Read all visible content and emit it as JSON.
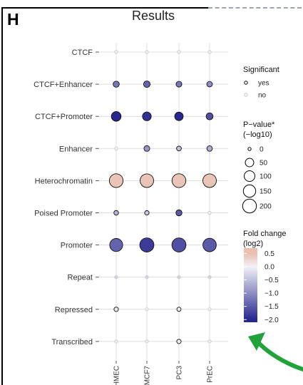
{
  "panel": {
    "letter": "H",
    "title": "Results"
  },
  "chart_data": {
    "type": "scatter",
    "title": "Results",
    "xlabel": "",
    "ylabel": "",
    "x_categories": [
      "HMEC",
      "MCF7",
      "PC3",
      "PrEC"
    ],
    "y_categories": [
      "CTCF",
      "CTCF+Enhancer",
      "CTCF+Promoter",
      "Enhancer",
      "Heterochromatin",
      "Poised Promoter",
      "Promoter",
      "Repeat",
      "Repressed",
      "Transcribed"
    ],
    "points": [
      {
        "y": "CTCF",
        "x": "HMEC",
        "fold_change_log2": 0.0,
        "neg_log10_p": 0,
        "significant": "no"
      },
      {
        "y": "CTCF",
        "x": "MCF7",
        "fold_change_log2": 0.0,
        "neg_log10_p": 0,
        "significant": "no"
      },
      {
        "y": "CTCF",
        "x": "PC3",
        "fold_change_log2": 0.0,
        "neg_log10_p": 0,
        "significant": "no"
      },
      {
        "y": "CTCF",
        "x": "PrEC",
        "fold_change_log2": 0.0,
        "neg_log10_p": 0,
        "significant": "no"
      },
      {
        "y": "CTCF+Enhancer",
        "x": "HMEC",
        "fold_change_log2": -1.2,
        "neg_log10_p": 15,
        "significant": "yes"
      },
      {
        "y": "CTCF+Enhancer",
        "x": "MCF7",
        "fold_change_log2": -1.4,
        "neg_log10_p": 20,
        "significant": "yes"
      },
      {
        "y": "CTCF+Enhancer",
        "x": "PC3",
        "fold_change_log2": -1.2,
        "neg_log10_p": 12,
        "significant": "yes"
      },
      {
        "y": "CTCF+Enhancer",
        "x": "PrEC",
        "fold_change_log2": -1.0,
        "neg_log10_p": 10,
        "significant": "yes"
      },
      {
        "y": "CTCF+Promoter",
        "x": "HMEC",
        "fold_change_log2": -2.0,
        "neg_log10_p": 75,
        "significant": "yes"
      },
      {
        "y": "CTCF+Promoter",
        "x": "MCF7",
        "fold_change_log2": -1.9,
        "neg_log10_p": 55,
        "significant": "yes"
      },
      {
        "y": "CTCF+Promoter",
        "x": "PC3",
        "fold_change_log2": -2.0,
        "neg_log10_p": 50,
        "significant": "yes"
      },
      {
        "y": "CTCF+Promoter",
        "x": "PrEC",
        "fold_change_log2": -1.6,
        "neg_log10_p": 25,
        "significant": "yes"
      },
      {
        "y": "Enhancer",
        "x": "HMEC",
        "fold_change_log2": 0.0,
        "neg_log10_p": 0,
        "significant": "no"
      },
      {
        "y": "Enhancer",
        "x": "MCF7",
        "fold_change_log2": -0.9,
        "neg_log10_p": 12,
        "significant": "yes"
      },
      {
        "y": "Enhancer",
        "x": "PC3",
        "fold_change_log2": -0.5,
        "neg_log10_p": 5,
        "significant": "yes"
      },
      {
        "y": "Enhancer",
        "x": "PrEC",
        "fold_change_log2": -0.7,
        "neg_log10_p": 10,
        "significant": "yes"
      },
      {
        "y": "Heterochromatin",
        "x": "HMEC",
        "fold_change_log2": 0.45,
        "neg_log10_p": 195,
        "significant": "yes"
      },
      {
        "y": "Heterochromatin",
        "x": "MCF7",
        "fold_change_log2": 0.45,
        "neg_log10_p": 190,
        "significant": "yes"
      },
      {
        "y": "Heterochromatin",
        "x": "PC3",
        "fold_change_log2": 0.45,
        "neg_log10_p": 200,
        "significant": "yes"
      },
      {
        "y": "Heterochromatin",
        "x": "PrEC",
        "fold_change_log2": 0.45,
        "neg_log10_p": 190,
        "significant": "yes"
      },
      {
        "y": "Poised Promoter",
        "x": "HMEC",
        "fold_change_log2": -0.6,
        "neg_log10_p": 4,
        "significant": "yes"
      },
      {
        "y": "Poised Promoter",
        "x": "MCF7",
        "fold_change_log2": -0.4,
        "neg_log10_p": 3,
        "significant": "yes"
      },
      {
        "y": "Poised Promoter",
        "x": "PC3",
        "fold_change_log2": -1.5,
        "neg_log10_p": 15,
        "significant": "yes"
      },
      {
        "y": "Poised Promoter",
        "x": "PrEC",
        "fold_change_log2": 0.0,
        "neg_log10_p": 0,
        "significant": "no"
      },
      {
        "y": "Promoter",
        "x": "HMEC",
        "fold_change_log2": -1.4,
        "neg_log10_p": 170,
        "significant": "yes"
      },
      {
        "y": "Promoter",
        "x": "MCF7",
        "fold_change_log2": -1.8,
        "neg_log10_p": 210,
        "significant": "yes"
      },
      {
        "y": "Promoter",
        "x": "PC3",
        "fold_change_log2": -1.6,
        "neg_log10_p": 210,
        "significant": "yes"
      },
      {
        "y": "Promoter",
        "x": "PrEC",
        "fold_change_log2": -1.5,
        "neg_log10_p": 185,
        "significant": "yes"
      },
      {
        "y": "Repeat",
        "x": "HMEC",
        "fold_change_log2": -0.3,
        "neg_log10_p": 0,
        "significant": "no"
      },
      {
        "y": "Repeat",
        "x": "MCF7",
        "fold_change_log2": -0.3,
        "neg_log10_p": 0,
        "significant": "no"
      },
      {
        "y": "Repeat",
        "x": "PC3",
        "fold_change_log2": -0.3,
        "neg_log10_p": 0,
        "significant": "no"
      },
      {
        "y": "Repeat",
        "x": "PrEC",
        "fold_change_log2": -0.3,
        "neg_log10_p": 0,
        "significant": "no"
      },
      {
        "y": "Repressed",
        "x": "HMEC",
        "fold_change_log2": 0.1,
        "neg_log10_p": 3,
        "significant": "yes"
      },
      {
        "y": "Repressed",
        "x": "MCF7",
        "fold_change_log2": 0.0,
        "neg_log10_p": 0,
        "significant": "no"
      },
      {
        "y": "Repressed",
        "x": "PC3",
        "fold_change_log2": 0.05,
        "neg_log10_p": 2,
        "significant": "yes"
      },
      {
        "y": "Repressed",
        "x": "PrEC",
        "fold_change_log2": 0.0,
        "neg_log10_p": 0,
        "significant": "no"
      },
      {
        "y": "Transcribed",
        "x": "HMEC",
        "fold_change_log2": 0.0,
        "neg_log10_p": 0,
        "significant": "no"
      },
      {
        "y": "Transcribed",
        "x": "MCF7",
        "fold_change_log2": 0.0,
        "neg_log10_p": 0,
        "significant": "no"
      },
      {
        "y": "Transcribed",
        "x": "PC3",
        "fold_change_log2": 0.05,
        "neg_log10_p": 3,
        "significant": "yes"
      },
      {
        "y": "Transcribed",
        "x": "PrEC",
        "fold_change_log2": 0.0,
        "neg_log10_p": 0,
        "significant": "no"
      }
    ],
    "grid": true,
    "legend_position": "right",
    "legend": {
      "significant": {
        "title": "Significant",
        "levels": [
          "yes",
          "no"
        ]
      },
      "size": {
        "title_line1": "P−value*",
        "title_line2": "(−log10)",
        "breaks": [
          0,
          50,
          100,
          150,
          200
        ],
        "labels": [
          "0",
          "50",
          "100",
          "150",
          "200"
        ]
      },
      "color": {
        "title_line1": "Fold change",
        "title_line2": "(log2)",
        "breaks": [
          0.5,
          0.0,
          -0.5,
          -1.0,
          -1.5,
          -2.0
        ],
        "labels": [
          "0.5",
          "0.0",
          "−0.5",
          "−1.0",
          "−1.5",
          "−2.0"
        ],
        "range": [
          -2.1,
          0.7
        ]
      }
    },
    "colors": {
      "high": "#e8bfb0",
      "mid": "#f2f1f7",
      "low": "#27278f",
      "grid": "#dcdcdc",
      "no_stroke": "#c4c4c4"
    }
  },
  "annotation": {
    "arrow_color": "#21a33a"
  }
}
